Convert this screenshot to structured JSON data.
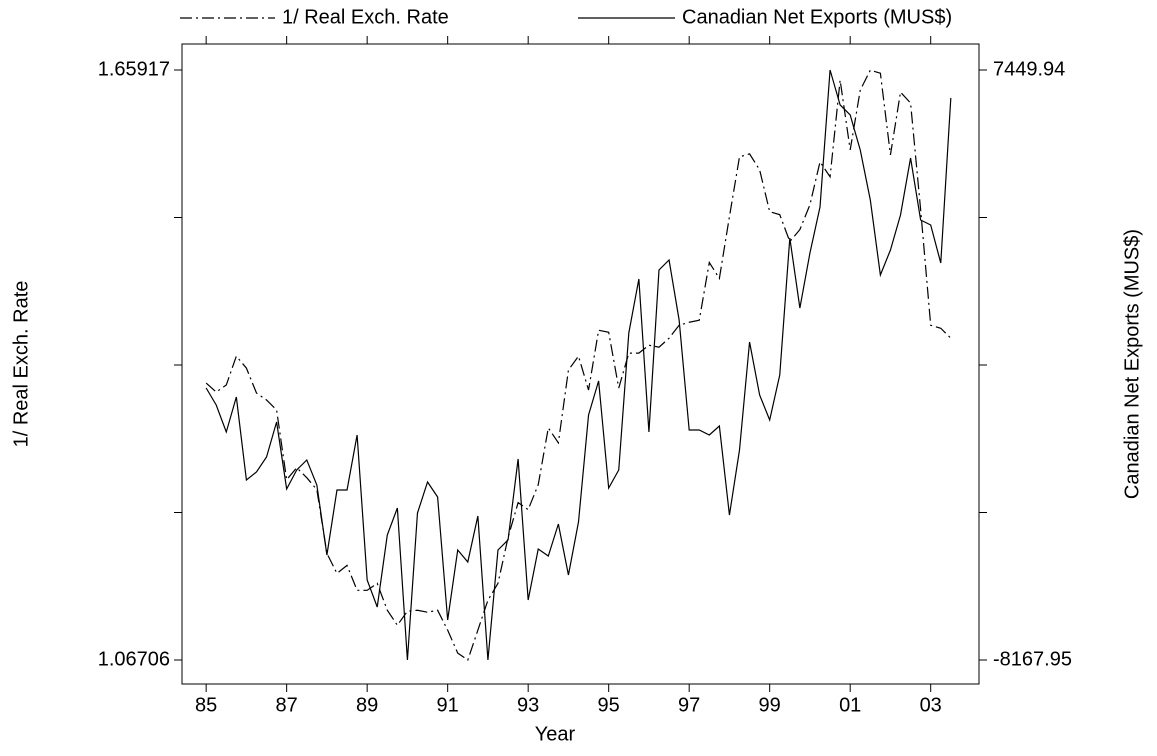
{
  "chart_data": {
    "type": "line",
    "xlabel": "Year",
    "ylabel": "1/ Real Exch. Rate",
    "y2label": "Canadian Net Exports (MUS$)",
    "x": [
      1985,
      1985.25,
      1985.5,
      1985.75,
      1986,
      1986.25,
      1986.5,
      1986.75,
      1987,
      1987.25,
      1987.5,
      1987.75,
      1988,
      1988.25,
      1988.5,
      1988.75,
      1989,
      1989.25,
      1989.5,
      1989.75,
      1990,
      1990.25,
      1990.5,
      1990.75,
      1991,
      1991.25,
      1991.5,
      1991.75,
      1992,
      1992.25,
      1992.5,
      1992.75,
      1993,
      1993.25,
      1993.5,
      1993.75,
      1994,
      1994.25,
      1994.5,
      1994.75,
      1995,
      1995.25,
      1995.5,
      1995.75,
      1996,
      1996.25,
      1996.5,
      1996.75,
      1997,
      1997.25,
      1997.5,
      1997.75,
      1998,
      1998.25,
      1998.5,
      1998.75,
      1999,
      1999.25,
      1999.5,
      1999.75,
      2000,
      2000.25,
      2000.5,
      2000.75,
      2001,
      2001.25,
      2001.5,
      2001.75,
      2002,
      2002.25,
      2002.5,
      2002.75,
      2003,
      2003.25,
      2003.5
    ],
    "series": [
      {
        "name": "1/ Real Exch. Rate",
        "color": "#000000",
        "style": "dash-dot",
        "values": [
          1.345,
          1.336,
          1.343,
          1.372,
          1.36,
          1.335,
          1.328,
          1.318,
          1.248,
          1.26,
          1.25,
          1.238,
          1.174,
          1.154,
          1.162,
          1.137,
          1.137,
          1.144,
          1.117,
          1.102,
          1.116,
          1.117,
          1.115,
          1.117,
          1.097,
          1.074,
          1.067,
          1.097,
          1.127,
          1.144,
          1.19,
          1.225,
          1.218,
          1.243,
          1.3,
          1.285,
          1.358,
          1.372,
          1.338,
          1.398,
          1.396,
          1.34,
          1.375,
          1.375,
          1.383,
          1.381,
          1.39,
          1.403,
          1.406,
          1.408,
          1.466,
          1.45,
          1.512,
          1.572,
          1.575,
          1.559,
          1.517,
          1.514,
          1.487,
          1.499,
          1.524,
          1.567,
          1.552,
          1.649,
          1.579,
          1.639,
          1.659,
          1.656,
          1.574,
          1.637,
          1.626,
          1.519,
          1.403,
          1.4,
          1.39
        ]
      },
      {
        "name": "Canadian Net Exports (MUS$)",
        "color": "#000000",
        "style": "solid",
        "axis": "y2",
        "values": [
          -968,
          -1418,
          -2133,
          -1206,
          -3403,
          -3191,
          -2794,
          -1868,
          -3641,
          -3138,
          -2874,
          -3535,
          -5388,
          -3668,
          -3668,
          -2212,
          -6050,
          -6765,
          -4859,
          -4144,
          -8168,
          -4277,
          -3456,
          -3853,
          -7109,
          -5256,
          -5574,
          -4356,
          -8168,
          -5256,
          -4991,
          -2847,
          -6580,
          -5230,
          -5415,
          -4568,
          -5918,
          -4515,
          -1682,
          -782,
          -3615,
          -3138,
          488,
          1918,
          -2133,
          2156,
          2421,
          832,
          -2080,
          -2080,
          -2212,
          -1974,
          -4330,
          -2609,
          250,
          -1153,
          -1815,
          -624,
          3003,
          1150,
          2606,
          3823,
          7450,
          6524,
          6259,
          5332,
          4009,
          2023,
          2685,
          3612,
          5121,
          3479,
          3347,
          2341,
          6709
        ]
      }
    ],
    "xlim": [
      1984.4,
      2004.2
    ],
    "xticks": [
      {
        "value": 1985,
        "label": "85"
      },
      {
        "value": 1987,
        "label": "87"
      },
      {
        "value": 1989,
        "label": "89"
      },
      {
        "value": 1991,
        "label": "91"
      },
      {
        "value": 1993,
        "label": "93"
      },
      {
        "value": 1995,
        "label": "95"
      },
      {
        "value": 1997,
        "label": "97"
      },
      {
        "value": 1999,
        "label": "99"
      },
      {
        "value": 2001,
        "label": "01"
      },
      {
        "value": 2003,
        "label": "03"
      }
    ],
    "ylim": [
      1.06706,
      1.65917
    ],
    "yticks": [
      1.06706,
      1.65917
    ],
    "y2lim": [
      -8167.95,
      7449.94
    ],
    "y2ticks": [
      -8167.95,
      7449.94
    ],
    "legend": "top"
  }
}
